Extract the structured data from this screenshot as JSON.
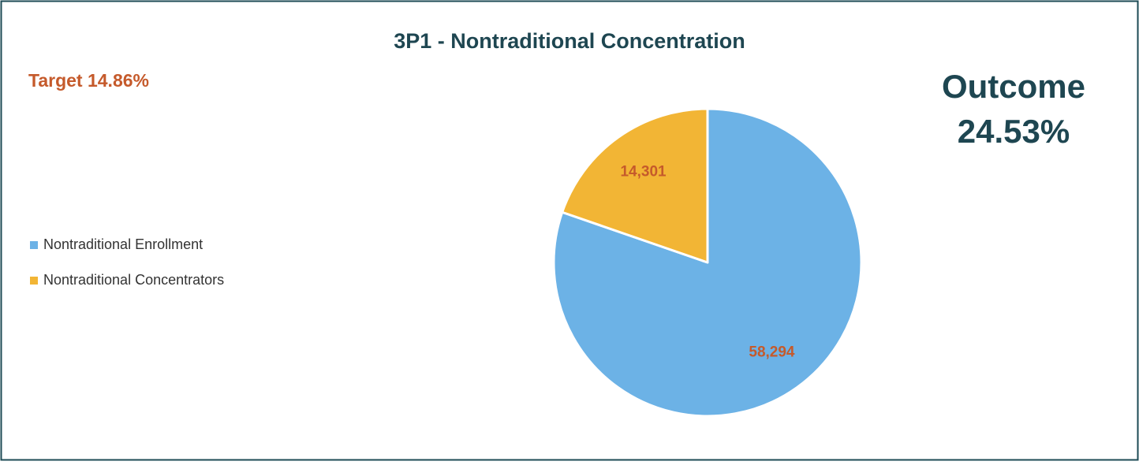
{
  "chart_data": {
    "type": "pie",
    "title": "3P1 - Nontraditional Concentration",
    "annotations": [
      "Target 14.86%",
      "Outcome",
      "24.53%"
    ],
    "categories": [
      "Nontraditional Enrollment",
      "Nontraditional Concentrators"
    ],
    "values": [
      58294,
      14301
    ],
    "value_labels": [
      "58,294",
      "14,301"
    ],
    "colors": [
      "#6cb2e6",
      "#f2b535"
    ],
    "legend": "left"
  }
}
